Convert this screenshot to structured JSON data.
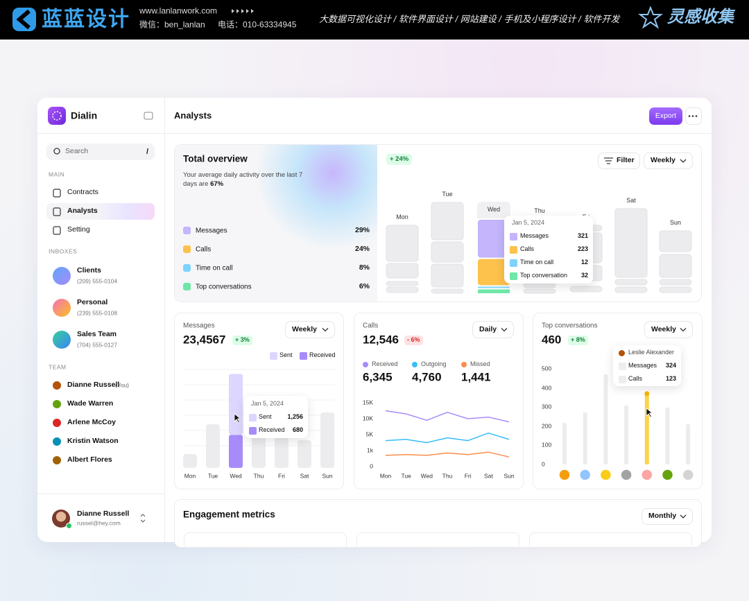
{
  "banner": {
    "logo": "蓝蓝设计",
    "url": "www.lanlanwork.com",
    "wechat": "微信：ben_lanlan",
    "phone": "电话：010-63334945",
    "services": "大数据可视化设计  /  软件界面设计  /  网站建设  /  手机及小程序设计  /  软件开发",
    "brand": "灵感收集"
  },
  "sidebar": {
    "app": "Dialin",
    "search": "Search",
    "shortcut": "/",
    "main_title": "MAIN",
    "main_nav": [
      "Contracts",
      "Analysts",
      "Setting"
    ],
    "inbox_title": "INBOXES",
    "inboxes": [
      {
        "name": "Clients",
        "phone": "(209) 555-0104"
      },
      {
        "name": "Personal",
        "phone": "(239) 555-0108"
      },
      {
        "name": "Sales Team",
        "phone": "(704) 555-0127"
      }
    ],
    "team_title": "TEAM",
    "team": [
      "Dianne Russell",
      "Wade Warren",
      "Arlene McCoy",
      "Kristin Watson",
      "Albert Flores"
    ],
    "you": "(You)",
    "user": {
      "name": "Dianne Russell",
      "email": "russel@hey.com"
    }
  },
  "header": {
    "title": "Analysts",
    "export": "Export"
  },
  "overview": {
    "title": "Total overview",
    "description": "Your average daily activity over the last 7 days are ",
    "highlight": "67%",
    "legend": [
      {
        "name": "Messages",
        "value": "29%",
        "color": "#c4b5fd"
      },
      {
        "name": "Calls",
        "value": "24%",
        "color": "#fcc24c"
      },
      {
        "name": "Time on call",
        "value": "8%",
        "color": "#7dd3fc"
      },
      {
        "name": "Top conversations",
        "value": "6%",
        "color": "#6ee7a8"
      }
    ],
    "change": "+ 24%",
    "filter": "Filter",
    "period": "Weekly",
    "days": [
      "Mon",
      "Tue",
      "Wed",
      "Thu",
      "Fri",
      "Sat",
      "Sun"
    ],
    "tooltip": {
      "date": "Jan 5, 2024",
      "rows": [
        {
          "name": "Messages",
          "value": 321
        },
        {
          "name": "Calls",
          "value": 223
        },
        {
          "name": "Time on call",
          "value": 12
        },
        {
          "name": "Top conversation",
          "value": 32
        }
      ]
    }
  },
  "messages": {
    "title": "Messages",
    "total": "23,4567",
    "change": "+ 3%",
    "period": "Weekly",
    "legend": [
      {
        "name": "Sent",
        "color": "#ddd6fe"
      },
      {
        "name": "Received",
        "color": "#a78bfa"
      }
    ],
    "days": [
      "Mon",
      "Tue",
      "Wed",
      "Thu",
      "Fri",
      "Sat",
      "Sun"
    ],
    "tooltip": {
      "date": "Jan 5, 2024",
      "rows": [
        {
          "name": "Sent",
          "value": 1256,
          "label": "1,256"
        },
        {
          "name": "Received",
          "value": 680
        }
      ]
    }
  },
  "calls": {
    "title": "Calls",
    "total": "12,546",
    "change": "- 6%",
    "period": "Daily",
    "chart": {
      "type": "line",
      "categories": [
        "Mon",
        "Tue",
        "Wed",
        "Thu",
        "Fri",
        "Sat",
        "Sun"
      ],
      "series": [
        {
          "name": "Received",
          "total": "6,345",
          "color": "#a78bfa",
          "values": [
            12500,
            11500,
            9500,
            12000,
            10000,
            10500,
            9000
          ]
        },
        {
          "name": "Outgoing",
          "total": "4,760",
          "color": "#38bdf8",
          "values": [
            3500,
            3800,
            3000,
            4200,
            3500,
            5500,
            3800
          ]
        },
        {
          "name": "Missed",
          "total": "1,441",
          "color": "#fb8c4c",
          "values": [
            700,
            750,
            700,
            850,
            750,
            900,
            600
          ]
        }
      ],
      "ylim": [
        0,
        15000
      ],
      "yticks": [
        0,
        {
          "value": 1000,
          "label": "1k"
        },
        {
          "value": 5000,
          "label": "5K"
        },
        {
          "value": 10000,
          "label": "10K"
        },
        {
          "value": 15000,
          "label": "15K"
        }
      ]
    }
  },
  "top": {
    "title": "Top conversations",
    "total": "460",
    "change": "+ 8%",
    "period": "Weekly",
    "chart": {
      "type": "bar",
      "values": [
        217,
        272,
        471,
        308,
        370,
        297,
        210
      ],
      "color": "#ececec",
      "highlight": 4,
      "highlight_color": "#fcd34d",
      "ylim": [
        0,
        500
      ],
      "yticks": [
        0,
        100,
        200,
        300,
        400,
        500
      ]
    },
    "tooltip": {
      "name": "Leslie Alexander",
      "rows": [
        {
          "name": "Messages",
          "value": 324
        },
        {
          "name": "Calls",
          "value": 123
        }
      ]
    }
  },
  "engagement": {
    "title": "Engagement metrics",
    "period": "Monthly"
  }
}
